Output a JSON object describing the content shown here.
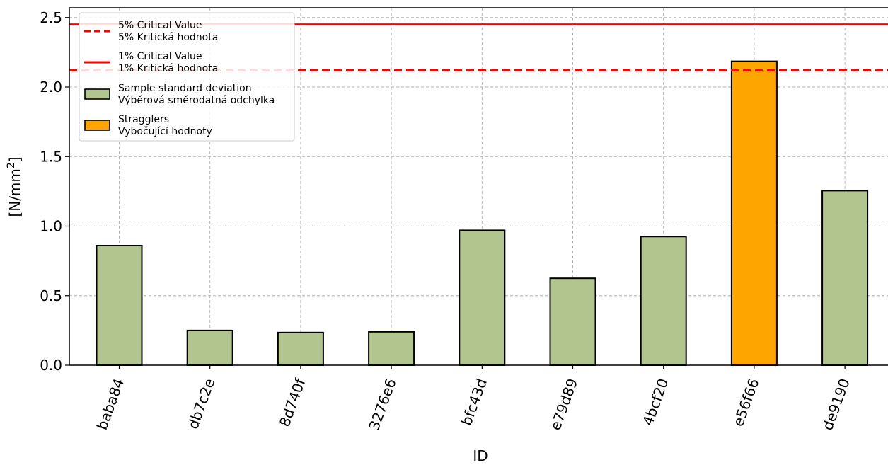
{
  "chart_data": {
    "type": "bar",
    "xlabel": "ID",
    "ylabel_main": "[N/mm",
    "ylabel_sup": "2",
    "ylabel_end": "]",
    "ylim": [
      0,
      2.57
    ],
    "yticks": [
      "0.0",
      "0.5",
      "1.0",
      "1.5",
      "2.0",
      "2.5"
    ],
    "grid": true,
    "categories": [
      "baba84",
      "db7c2e",
      "8d740f",
      "3276e6",
      "bfc43d",
      "e79d89",
      "4bcf20",
      "e56f66",
      "de9190"
    ],
    "values": [
      0.86,
      0.25,
      0.235,
      0.24,
      0.97,
      0.625,
      0.925,
      2.185,
      1.255
    ],
    "stragglers": [
      false,
      false,
      false,
      false,
      false,
      false,
      false,
      true,
      false
    ],
    "critical_5": 2.12,
    "critical_1": 2.45,
    "legend_position": "top-left",
    "legend": [
      {
        "kind": "dashed-line",
        "line1": "5% Critical Value",
        "line2": "5% Kritická hodnota"
      },
      {
        "kind": "solid-line",
        "line1": "1% Critical Value",
        "line2": "1% Kritická hodnota"
      },
      {
        "kind": "patch-normal",
        "line1": "Sample standard deviation",
        "line2": "Výběrová směrodatná odchylka"
      },
      {
        "kind": "patch-straggler",
        "line1": "Stragglers",
        "line2": "Vybočující hodnoty"
      }
    ],
    "colors": {
      "bar": "#b3c58f",
      "straggler": "#ffa500",
      "critical": "#ff0000",
      "grid": "#b0b0b0"
    }
  }
}
